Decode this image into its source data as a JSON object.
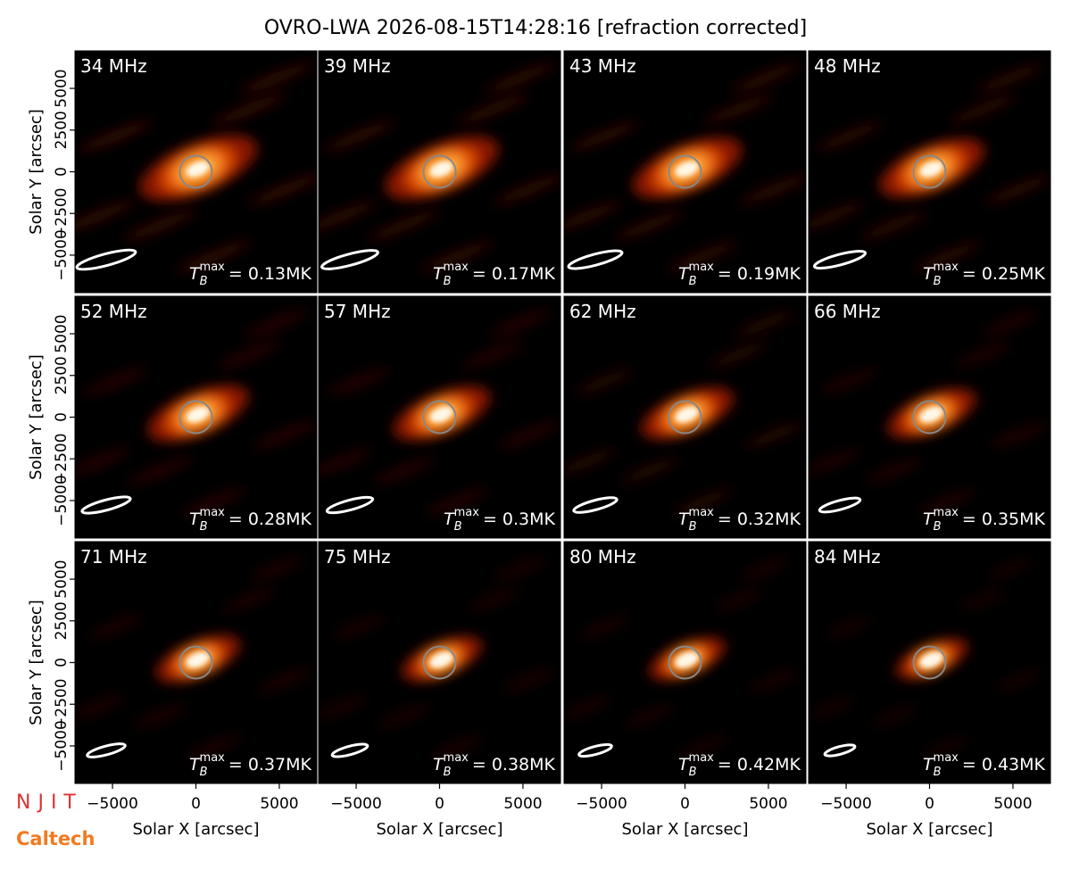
{
  "title": "OVRO-LWA 2026-08-15T14:28:16 [refraction corrected]",
  "logos": [
    "NJIT",
    "Caltech"
  ],
  "tb_symbol": "T",
  "tb_sub": "B",
  "tb_sup": "max",
  "chart_data": [
    {
      "type": "image",
      "title": "34 MHz",
      "tb_text": "= 0.13MK",
      "xlim": [
        -7250,
        7250
      ],
      "ylim": [
        -7250,
        7250
      ],
      "ylabel": "Solar Y [arcsec]",
      "yticks": [
        {
          "value": -5000,
          "label": "−5000"
        },
        {
          "value": -2500,
          "label": "−2500"
        },
        0,
        2500,
        5000
      ]
    },
    {
      "type": "image",
      "title": "39 MHz",
      "tb_text": "= 0.17MK",
      "xlim": [
        -7250,
        7250
      ],
      "ylim": [
        -7250,
        7250
      ]
    },
    {
      "type": "image",
      "title": "43 MHz",
      "tb_text": "= 0.19MK",
      "xlim": [
        -7250,
        7250
      ],
      "ylim": [
        -7250,
        7250
      ]
    },
    {
      "type": "image",
      "title": "48 MHz",
      "tb_text": "= 0.25MK",
      "xlim": [
        -7250,
        7250
      ],
      "ylim": [
        -7250,
        7250
      ]
    },
    {
      "type": "image",
      "title": "52 MHz",
      "tb_text": "= 0.28MK",
      "xlim": [
        -7250,
        7250
      ],
      "ylim": [
        -7250,
        7250
      ],
      "ylabel": "Solar Y [arcsec]",
      "yticks": [
        {
          "value": -5000,
          "label": "−5000"
        },
        {
          "value": -2500,
          "label": "−2500"
        },
        0,
        2500,
        5000
      ]
    },
    {
      "type": "image",
      "title": "57 MHz",
      "tb_text": "= 0.3MK",
      "xlim": [
        -7250,
        7250
      ],
      "ylim": [
        -7250,
        7250
      ]
    },
    {
      "type": "image",
      "title": "62 MHz",
      "tb_text": "= 0.32MK",
      "xlim": [
        -7250,
        7250
      ],
      "ylim": [
        -7250,
        7250
      ]
    },
    {
      "type": "image",
      "title": "66 MHz",
      "tb_text": "= 0.35MK",
      "xlim": [
        -7250,
        7250
      ],
      "ylim": [
        -7250,
        7250
      ]
    },
    {
      "type": "image",
      "title": "71 MHz",
      "tb_text": "= 0.37MK",
      "xlim": [
        -7250,
        7250
      ],
      "ylim": [
        -7250,
        7250
      ],
      "ylabel": "Solar Y [arcsec]",
      "yticks": [
        {
          "value": -5000,
          "label": "−5000"
        },
        {
          "value": -2500,
          "label": "−2500"
        },
        0,
        2500,
        5000
      ],
      "xlabel": "Solar X [arcsec]",
      "xticks": [
        {
          "value": -5000,
          "label": "−5000"
        },
        0,
        5000
      ]
    },
    {
      "type": "image",
      "title": "75 MHz",
      "tb_text": "= 0.38MK",
      "xlim": [
        -7250,
        7250
      ],
      "ylim": [
        -7250,
        7250
      ],
      "xlabel": "Solar X [arcsec]",
      "xticks": [
        {
          "value": -5000,
          "label": "−5000"
        },
        0,
        5000
      ]
    },
    {
      "type": "image",
      "title": "80 MHz",
      "tb_text": "= 0.42MK",
      "xlim": [
        -7250,
        7250
      ],
      "ylim": [
        -7250,
        7250
      ],
      "xlabel": "Solar X [arcsec]",
      "xticks": [
        {
          "value": -5000,
          "label": "−5000"
        },
        0,
        5000
      ]
    },
    {
      "type": "image",
      "title": "84 MHz",
      "tb_text": "= 0.43MK",
      "xlim": [
        -7250,
        7250
      ],
      "ylim": [
        -7250,
        7250
      ],
      "xlabel": "Solar X [arcsec]",
      "xticks": [
        {
          "value": -5000,
          "label": "−5000"
        },
        0,
        5000
      ]
    }
  ]
}
